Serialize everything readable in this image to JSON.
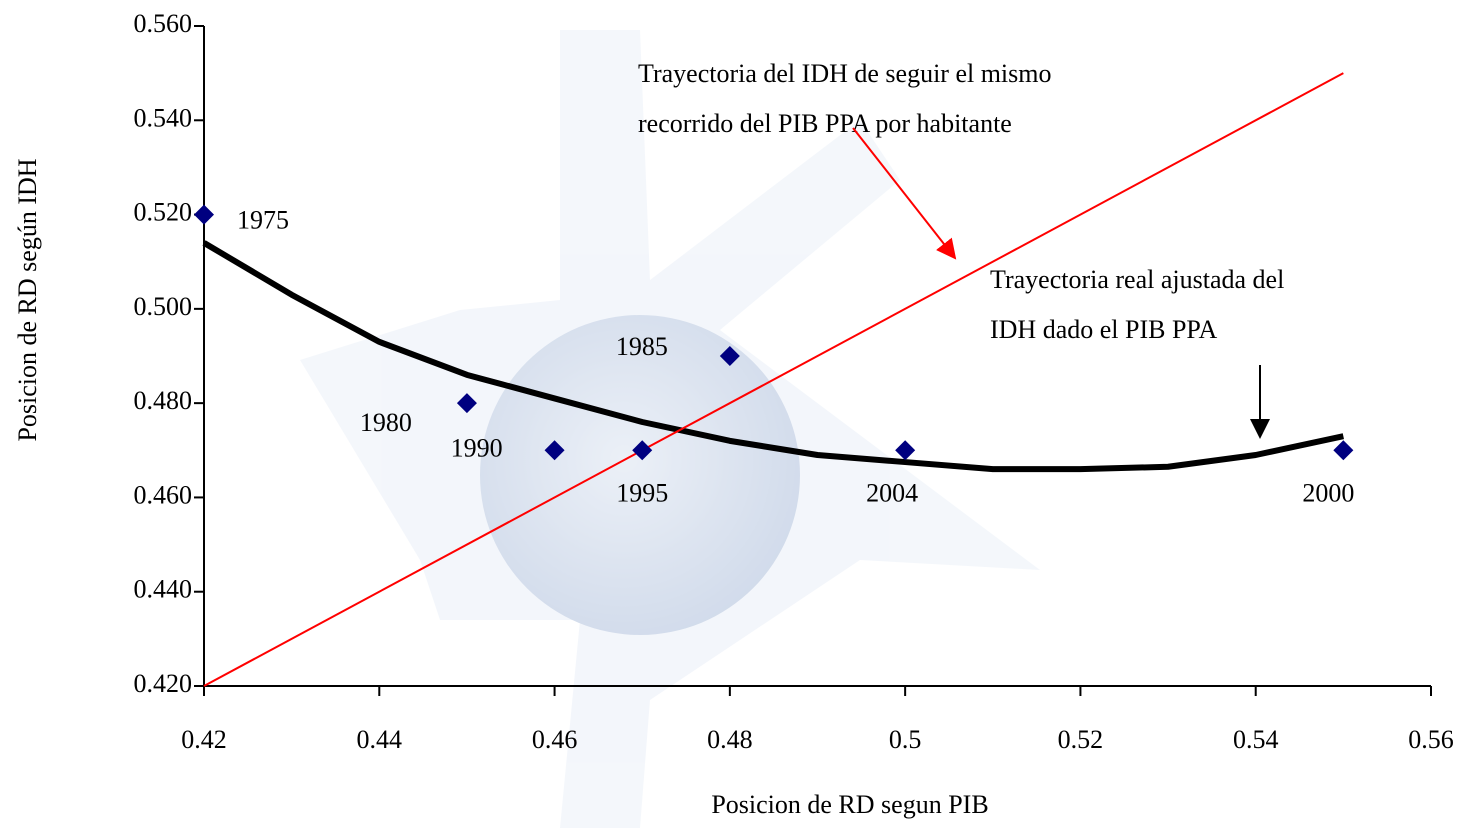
{
  "chart_data": {
    "type": "scatter",
    "xlabel": "Posicion de RD segun PIB",
    "ylabel": "Posicion de RD según IDH",
    "xlim": [
      0.42,
      0.56
    ],
    "xticks": [
      0.42,
      0.44,
      0.46,
      0.48,
      0.5,
      0.52,
      0.54,
      0.56
    ],
    "ylim": [
      0.42,
      0.56
    ],
    "yticks": [
      {
        "value": 0.42,
        "label": "0.420"
      },
      {
        "value": 0.44,
        "label": "0.440"
      },
      {
        "value": 0.46,
        "label": "0.460"
      },
      {
        "value": 0.48,
        "label": "0.480"
      },
      {
        "value": 0.5,
        "label": "0.500"
      },
      {
        "value": 0.52,
        "label": "0.520"
      },
      {
        "value": 0.54,
        "label": "0.540"
      },
      {
        "value": 0.56,
        "label": "0.560"
      }
    ],
    "series": [
      {
        "style": "markers",
        "color": "#000080",
        "x": [
          0.42,
          0.45,
          0.48,
          0.46,
          0.47,
          0.55,
          0.5
        ],
        "values": [
          0.52,
          0.48,
          0.49,
          0.47,
          0.47,
          0.47,
          0.47
        ],
        "point_labels": [
          "1975",
          "1980",
          "1985",
          "1990",
          "1995",
          "2000",
          "2004"
        ]
      },
      {
        "style": "line",
        "color": "#000000",
        "width": 6,
        "x": [
          0.42,
          0.43,
          0.44,
          0.45,
          0.46,
          0.47,
          0.48,
          0.49,
          0.5,
          0.51,
          0.52,
          0.53,
          0.54,
          0.55
        ],
        "values": [
          0.514,
          0.503,
          0.493,
          0.486,
          0.481,
          0.476,
          0.472,
          0.469,
          0.4675,
          0.466,
          0.466,
          0.4665,
          0.469,
          0.473
        ]
      },
      {
        "style": "line",
        "color": "#ff0000",
        "width": 2,
        "x": [
          0.42,
          0.55
        ],
        "values": [
          0.42,
          0.55
        ]
      }
    ],
    "annotations": [
      [
        "Trayectoria del IDH de seguir el mismo",
        "recorrido del PIB PPA por habitante"
      ],
      [
        "Trayectoria real ajustada del",
        "IDH dado el PIB PPA"
      ]
    ]
  }
}
